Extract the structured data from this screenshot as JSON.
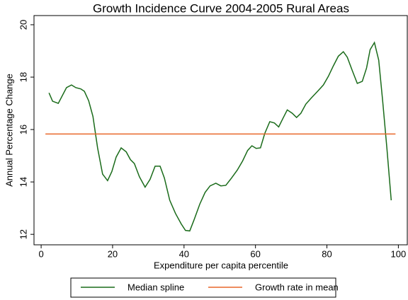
{
  "chart_data": {
    "type": "line",
    "title": "Growth Incidence Curve 2004-2005 Rural Areas",
    "x_label": "Expenditure per capita percentile",
    "y_label": "Annual Percentage Change",
    "xlim": [
      -2,
      102.5
    ],
    "xticks": [
      0,
      20,
      40,
      60,
      80,
      100
    ],
    "ylim": [
      11.6,
      20.35
    ],
    "yticks": [
      12,
      14,
      16,
      18,
      20
    ],
    "legend": "bottom",
    "series": [
      {
        "name": "Median spline",
        "color": "#1a6b1a",
        "x": [
          2.2,
          3.2,
          4.8,
          7.1,
          8.5,
          9.7,
          11.1,
          12.1,
          13.3,
          14.5,
          15.8,
          17.2,
          18.6,
          19.8,
          21.0,
          22.4,
          23.8,
          25.0,
          26.1,
          27.5,
          29.1,
          30.5,
          31.9,
          33.3,
          34.5,
          36.0,
          37.6,
          39.2,
          40.4,
          41.6,
          42.8,
          44.4,
          45.9,
          47.3,
          48.9,
          50.3,
          51.7,
          53.3,
          54.9,
          56.4,
          57.8,
          59.0,
          60.2,
          61.4,
          62.6,
          64.0,
          65.3,
          66.5,
          67.7,
          68.9,
          70.3,
          71.5,
          72.7,
          74.1,
          75.6,
          77.4,
          79.0,
          80.4,
          81.8,
          83.2,
          84.6,
          85.7,
          87.1,
          88.5,
          89.9,
          91.1,
          92.1,
          93.3,
          94.5,
          95.6,
          96.8,
          98.0
        ],
        "values": [
          17.4,
          17.08,
          17.0,
          17.6,
          17.7,
          17.6,
          17.55,
          17.46,
          17.1,
          16.5,
          15.3,
          14.3,
          14.05,
          14.4,
          14.95,
          15.3,
          15.15,
          14.85,
          14.7,
          14.2,
          13.8,
          14.1,
          14.6,
          14.6,
          14.15,
          13.3,
          12.8,
          12.4,
          12.15,
          12.13,
          12.55,
          13.15,
          13.6,
          13.85,
          13.95,
          13.85,
          13.87,
          14.15,
          14.45,
          14.8,
          15.2,
          15.38,
          15.28,
          15.3,
          15.85,
          16.3,
          16.25,
          16.1,
          16.43,
          16.75,
          16.62,
          16.46,
          16.62,
          16.97,
          17.2,
          17.46,
          17.7,
          18.03,
          18.43,
          18.8,
          18.97,
          18.76,
          18.25,
          17.76,
          17.84,
          18.35,
          19.05,
          19.32,
          18.65,
          17.1,
          15.27,
          13.3
        ]
      },
      {
        "name": "Growth rate in mean",
        "color": "#e8672a",
        "x": [
          1.2,
          99.2
        ],
        "values": [
          15.83,
          15.83
        ]
      }
    ]
  }
}
